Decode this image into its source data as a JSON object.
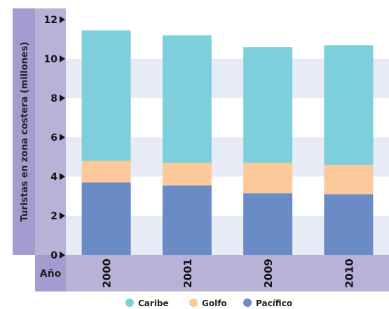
{
  "chart_data": {
    "type": "bar",
    "stacked": true,
    "categories": [
      "2000",
      "2001",
      "2009",
      "2010"
    ],
    "series": [
      {
        "name": "Pacífico",
        "values": [
          3.7,
          3.55,
          3.15,
          3.1
        ]
      },
      {
        "name": "Golfo",
        "values": [
          1.1,
          1.15,
          1.55,
          1.5
        ]
      },
      {
        "name": "Caribe",
        "values": [
          6.65,
          6.5,
          5.9,
          6.1
        ]
      }
    ],
    "ylabel": "Turistas en zona costera (millones)",
    "xlabel": "Año",
    "ylim": [
      0,
      12
    ],
    "yticks": [
      "0",
      "2",
      "4",
      "6",
      "8",
      "10",
      "12"
    ],
    "legend_position": "bottom",
    "colors": {
      "Pacífico": "#6b8bc7",
      "Golfo": "#fbc99a",
      "Caribe": "#7dcfdc",
      "band_light": "#e6ebf6",
      "axis_panel": "#b8b2d8",
      "axis_label_panel": "#a59bd0",
      "bar_text": "#111111"
    }
  }
}
